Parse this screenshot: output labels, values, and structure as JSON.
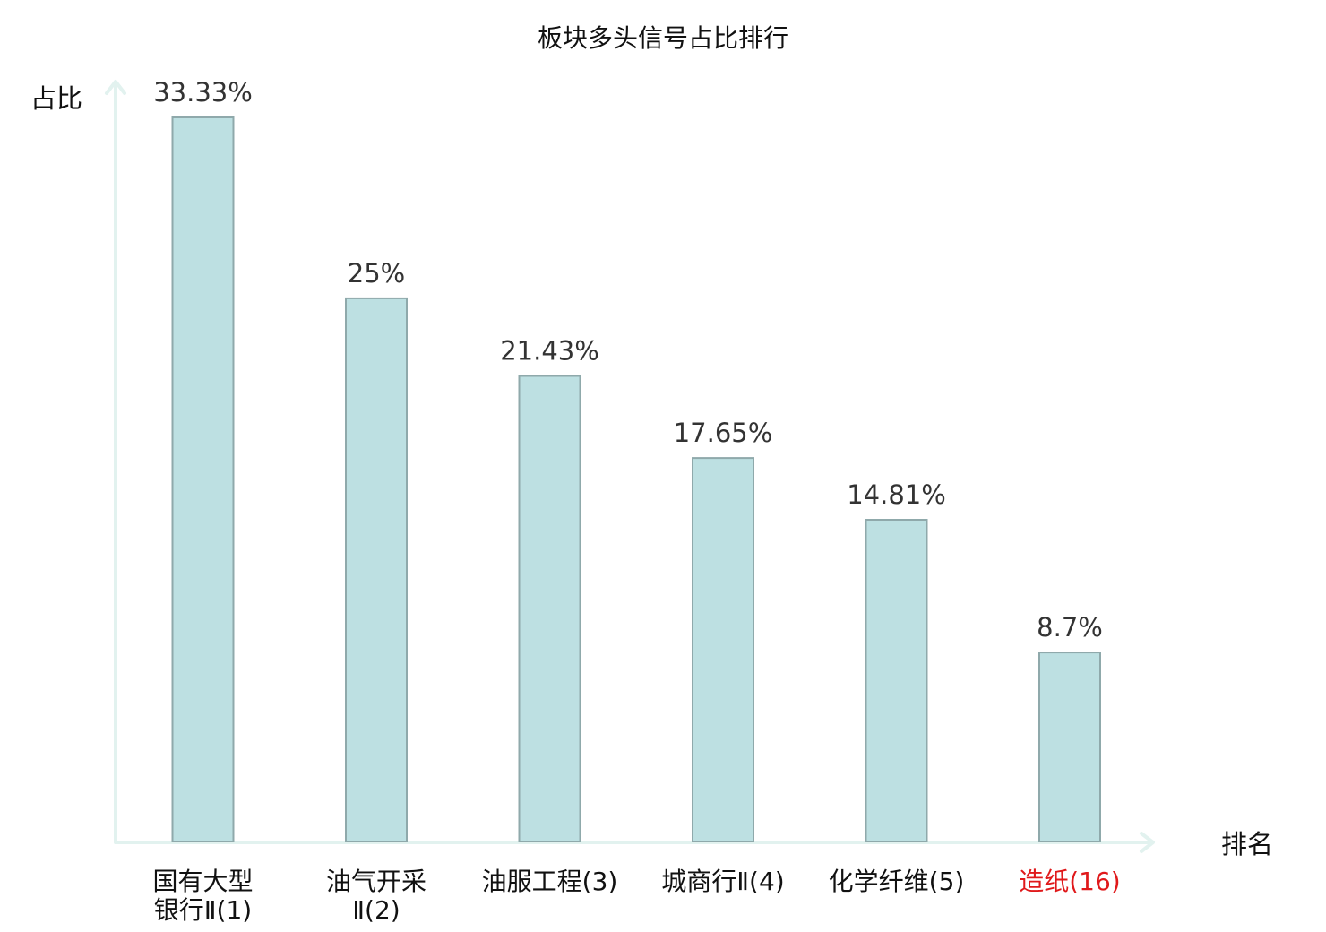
{
  "chart_data": {
    "type": "bar",
    "title": "板块多头信号占比排行",
    "ylabel": "占比",
    "xlabel": "排名",
    "ylim": [
      0,
      35
    ],
    "grid": false,
    "legend": "none",
    "categories": [
      [
        "国有大型",
        "银行Ⅱ(1)"
      ],
      [
        "油气开采",
        "Ⅱ(2)"
      ],
      [
        "油服工程(3)"
      ],
      [
        "城商行Ⅱ(4)"
      ],
      [
        "化学纤维(5)"
      ],
      [
        "造纸(16)"
      ]
    ],
    "values": [
      33.33,
      25,
      21.43,
      17.65,
      14.81,
      8.7
    ],
    "data_labels": [
      "33.33%",
      "25%",
      "21.43%",
      "17.65%",
      "14.81%",
      "8.7%"
    ],
    "highlight_index": 5,
    "colors": {
      "bar_fill": "#bde0e2",
      "bar_stroke": "#8fa9ab",
      "axis": "#e2f2ef",
      "text": "#111111",
      "value_text": "#333333",
      "highlight_text": "#e0191b"
    }
  }
}
